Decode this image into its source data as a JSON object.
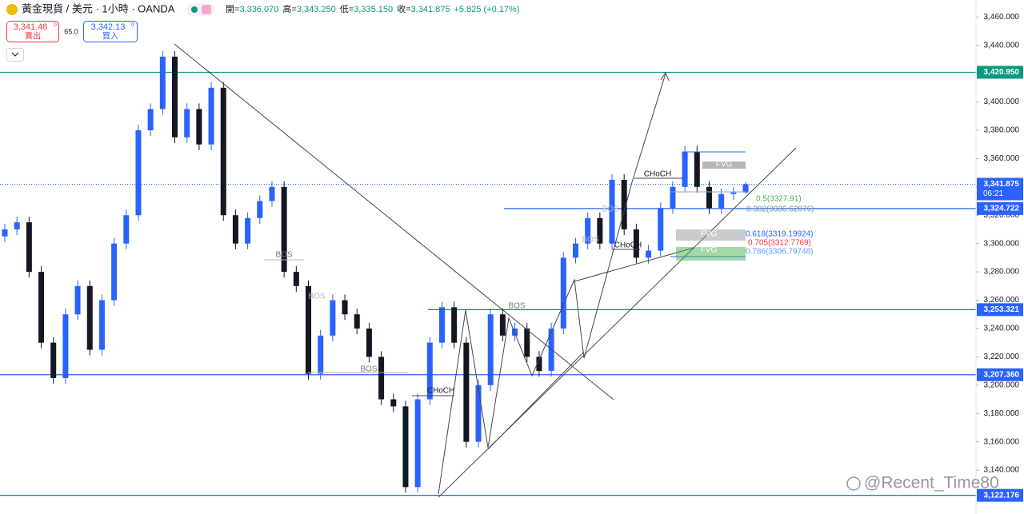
{
  "chart_data": {
    "type": "candlestick",
    "title": "黃金現貨 / 美元 · 1小時 · OANDA",
    "ohlc_info": [
      {
        "label": "開=",
        "value": "3,336.070"
      },
      {
        "label": "高=",
        "value": "3,343.250"
      },
      {
        "label": "低=",
        "value": "3,335.150"
      },
      {
        "label": "收=",
        "value": "3,341.875"
      }
    ],
    "change": "+5.825 (+0.17%)",
    "sell": {
      "price": "3,341.48",
      "sup": "0",
      "label": "賣出"
    },
    "spread": "65.0",
    "buy": {
      "price": "3,342.13",
      "sup": "0",
      "label": "買入"
    },
    "up_color": "#2962ff",
    "down_color": "#131722",
    "open": [
      3305,
      3310,
      3315,
      3280,
      3230,
      3205,
      3250,
      3270,
      3225,
      3260,
      3300,
      3320,
      3380,
      3395,
      3432,
      3375,
      3395,
      3370,
      3410,
      3320,
      3300,
      3318,
      3330,
      3340,
      3280,
      3270,
      3208,
      3235,
      3260,
      3250,
      3240,
      3220,
      3190,
      3185,
      3128,
      3190,
      3230,
      3255,
      3230,
      3160,
      3200,
      3250,
      3235,
      3240,
      3220,
      3210,
      3240,
      3290,
      3300,
      3318,
      3300,
      3345,
      3310,
      3290,
      3295,
      3325,
      3340,
      3365,
      3340,
      3325,
      3335,
      3336.07
    ],
    "high": [
      3314,
      3319,
      3319,
      3284,
      3234,
      3254,
      3274,
      3274,
      3264,
      3304,
      3324,
      3384,
      3399,
      3436,
      3436,
      3399,
      3399,
      3414,
      3414,
      3324,
      3322,
      3334,
      3344,
      3344,
      3284,
      3274,
      3239,
      3264,
      3264,
      3254,
      3244,
      3224,
      3194,
      3189,
      3194,
      3234,
      3259,
      3259,
      3234,
      3204,
      3254,
      3254,
      3244,
      3244,
      3224,
      3244,
      3294,
      3304,
      3322,
      3322,
      3349,
      3349,
      3314,
      3299,
      3329,
      3344,
      3369,
      3369,
      3344,
      3339,
      3340,
      3343.25
    ],
    "low": [
      3301,
      3306,
      3276,
      3226,
      3201,
      3201,
      3246,
      3221,
      3221,
      3256,
      3296,
      3316,
      3376,
      3391,
      3371,
      3371,
      3366,
      3366,
      3316,
      3296,
      3296,
      3314,
      3326,
      3276,
      3266,
      3204,
      3204,
      3231,
      3246,
      3236,
      3216,
      3186,
      3181,
      3124,
      3124,
      3186,
      3226,
      3226,
      3156,
      3156,
      3196,
      3231,
      3231,
      3216,
      3206,
      3206,
      3236,
      3286,
      3296,
      3296,
      3296,
      3306,
      3286,
      3286,
      3291,
      3321,
      3336,
      3336,
      3321,
      3321,
      3331,
      3335.15
    ],
    "close": [
      3310,
      3315,
      3280,
      3230,
      3205,
      3250,
      3270,
      3225,
      3260,
      3300,
      3320,
      3380,
      3395,
      3432,
      3375,
      3395,
      3370,
      3410,
      3320,
      3300,
      3318,
      3330,
      3340,
      3280,
      3270,
      3208,
      3235,
      3260,
      3250,
      3240,
      3220,
      3190,
      3185,
      3128,
      3190,
      3230,
      3255,
      3230,
      3160,
      3200,
      3250,
      3235,
      3240,
      3220,
      3210,
      3240,
      3290,
      3300,
      3318,
      3300,
      3345,
      3310,
      3290,
      3295,
      3325,
      3340,
      3365,
      3340,
      3325,
      3335,
      3336.07,
      3341.875
    ],
    "ylim": [
      3109,
      3472
    ],
    "yticks": [
      {
        "value": 3140,
        "label": "3,140.000"
      },
      {
        "value": 3160,
        "label": "3,160.000"
      },
      {
        "value": 3180,
        "label": "3,180.000"
      },
      {
        "value": 3200,
        "label": "3,200.000"
      },
      {
        "value": 3220,
        "label": "3,220.000"
      },
      {
        "value": 3240,
        "label": "3,240.000"
      },
      {
        "value": 3260,
        "label": "3,260.000"
      },
      {
        "value": 3280,
        "label": "3,280.000"
      },
      {
        "value": 3300,
        "label": "3,300.000"
      },
      {
        "value": 3320,
        "label": "3,320.000"
      },
      {
        "value": 3340,
        "label": "3,340.000"
      },
      {
        "value": 3360,
        "label": "3,360.000"
      },
      {
        "value": 3380,
        "label": "3,380.000"
      },
      {
        "value": 3400,
        "label": "3,400.000"
      },
      {
        "value": 3420,
        "label": "3,420.000"
      },
      {
        "value": 3440,
        "label": "3,440.000"
      },
      {
        "value": 3460,
        "label": "3,460.000"
      }
    ],
    "levels": [
      {
        "value": 3420.95,
        "label": "3,420.950",
        "color": "#089981"
      },
      {
        "value": 3324.722,
        "label": "3,324.722",
        "color": "#2962ff"
      },
      {
        "value": 3253.321,
        "label": "3,253.321",
        "color": "#2962ff"
      },
      {
        "value": 3207.36,
        "label": "3,207.360",
        "color": "#2962ff"
      },
      {
        "value": 3122.176,
        "label": "3,122.176",
        "color": "#2962ff"
      }
    ],
    "current_price": {
      "value": 3341.875,
      "label": "3,341.875",
      "timer": "06:21",
      "color": "#2962ff"
    },
    "annotations": [
      "BOS",
      "BOS",
      "BOS",
      "BOS",
      "BOS",
      "BOS",
      "CHoCH",
      "CHoCH",
      "CHoCH",
      "FVG",
      "FVG",
      "FVG"
    ],
    "fib_labels": [
      "0.382(3336.62076)",
      "0.5(3327.91)",
      "0.618(3319.19924)",
      "0.705(3312.7769)",
      "0.786(3306.79748)"
    ],
    "watermark": "@Recent_Time80"
  }
}
